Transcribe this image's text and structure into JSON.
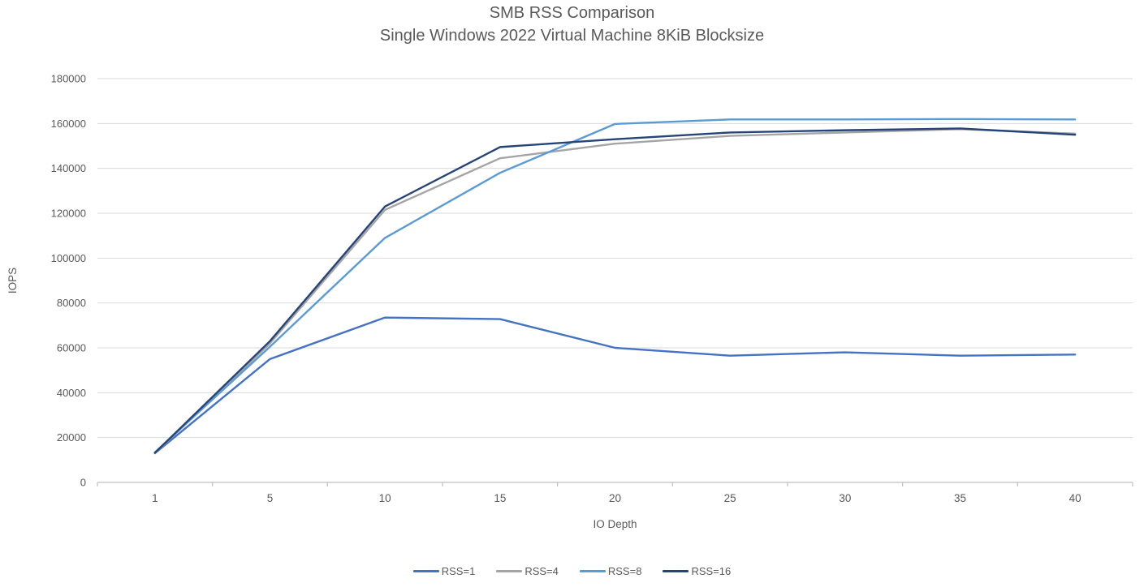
{
  "chart_data": {
    "type": "line",
    "title": "SMB RSS Comparison",
    "subtitle": "Single Windows 2022 Virtual Machine 8KiB Blocksize",
    "xlabel": "IO Depth",
    "ylabel": "IOPS",
    "categories": [
      1,
      5,
      10,
      15,
      20,
      25,
      30,
      35,
      40
    ],
    "ylim": [
      0,
      180000
    ],
    "ytick_step": 20000,
    "grid": "horizontal",
    "legend_position": "bottom",
    "colors": {
      "text": "#595959",
      "gridline": "#d9d9d9",
      "axis": "#bfbfbf"
    },
    "series": [
      {
        "name": "RSS=1",
        "color": "#4472c4",
        "values": [
          13000,
          55000,
          73500,
          72800,
          60000,
          56500,
          58000,
          56500,
          57000
        ]
      },
      {
        "name": "RSS=4",
        "color": "#a5a5a5",
        "values": [
          13000,
          62000,
          121500,
          144500,
          151000,
          154500,
          156000,
          157500,
          155500
        ]
      },
      {
        "name": "RSS=8",
        "color": "#5b9bd5",
        "values": [
          13400,
          60500,
          109000,
          138000,
          159800,
          161800,
          161800,
          162000,
          161800
        ]
      },
      {
        "name": "RSS=16",
        "color": "#264478",
        "values": [
          13200,
          63000,
          123000,
          149500,
          153000,
          156000,
          157000,
          157800,
          155000
        ]
      }
    ]
  }
}
